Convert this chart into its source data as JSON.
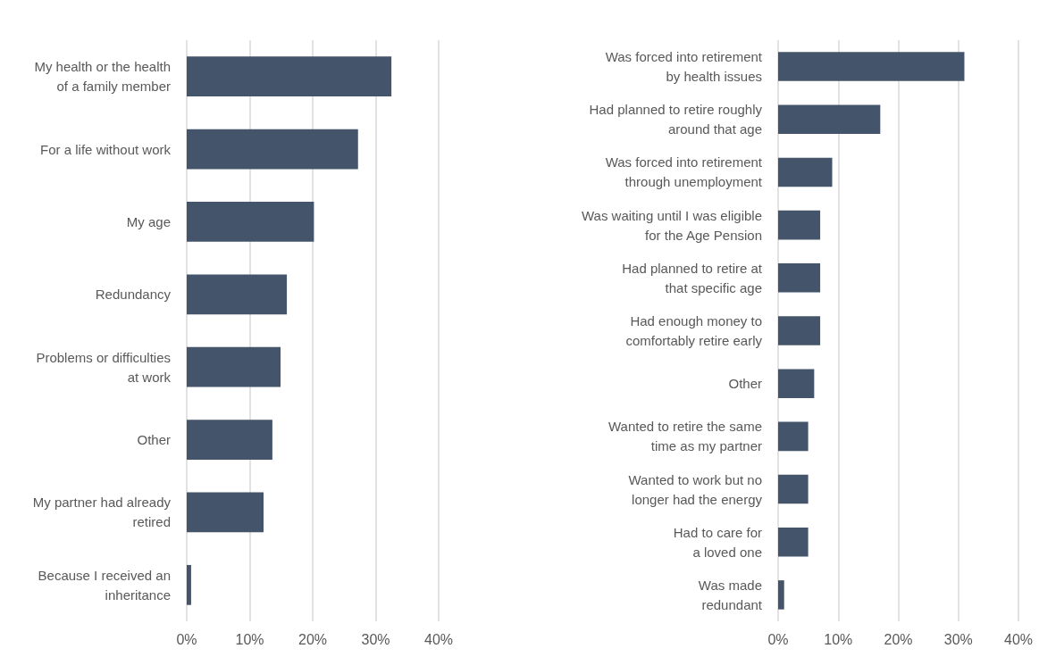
{
  "chart_data": [
    {
      "type": "bar",
      "orientation": "horizontal",
      "categories": [
        "My health or the health\nof a family member",
        "For a life without work",
        "My age",
        "Redundancy",
        "Problems or difficulties\nat work",
        "Other",
        "My partner had already\nretired",
        "Because I received an\ninheritance"
      ],
      "values": [
        32.5,
        27.2,
        20.2,
        15.9,
        14.9,
        13.6,
        12.2,
        0.7
      ],
      "color": "#44546a",
      "xlim": [
        0,
        40
      ],
      "xticks": [
        {
          "value": 0,
          "label": "0%"
        },
        {
          "value": 10,
          "label": "10%"
        },
        {
          "value": 20,
          "label": "20%"
        },
        {
          "value": 30,
          "label": "30%"
        },
        {
          "value": 40,
          "label": "40%"
        }
      ],
      "grid": "x"
    },
    {
      "type": "bar",
      "orientation": "horizontal",
      "categories": [
        "Was forced into retirement\nby health issues",
        "Had planned to retire roughly\naround that age",
        "Was forced into retirement\nthrough unemployment",
        "Was waiting until I was eligible\nfor the Age Pension",
        "Had planned to retire at\nthat specific age",
        "Had enough money to\ncomfortably retire early",
        "Other",
        "Wanted to retire the same\ntime as my partner",
        "Wanted to work but no\nlonger had the energy",
        "Had to care for\na loved one",
        "Was made\nredundant"
      ],
      "values": [
        31,
        17,
        9,
        7,
        7,
        7,
        6,
        5,
        5,
        5,
        1
      ],
      "color": "#44546a",
      "xlim": [
        0,
        40
      ],
      "xticks": [
        {
          "value": 0,
          "label": "0%"
        },
        {
          "value": 10,
          "label": "10%"
        },
        {
          "value": 20,
          "label": "20%"
        },
        {
          "value": 30,
          "label": "30%"
        },
        {
          "value": 40,
          "label": "40%"
        }
      ],
      "grid": "x"
    }
  ]
}
